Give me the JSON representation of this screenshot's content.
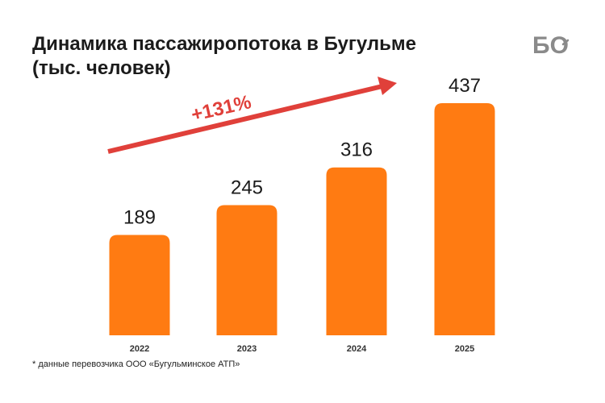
{
  "header": {
    "title_line1": "Динамика пассажиропотока в Бугульме",
    "title_line2": "(тыс. человек)",
    "logo_text": "БО"
  },
  "annotation": {
    "growth_label": "+131%",
    "arrow_color": "#e0403a"
  },
  "footnote": "* данные перевозчика ООО «Бугульминское АТП»",
  "colors": {
    "bar": "#ff7b12",
    "text": "#1b1b1b",
    "logo": "#8a8a8a"
  },
  "chart_data": {
    "type": "bar",
    "title": "Динамика пассажиропотока в Бугульме (тыс. человек)",
    "categories": [
      "2022",
      "2023",
      "2024",
      "2025"
    ],
    "values": [
      189,
      245,
      316,
      437
    ],
    "data_labels": [
      "189",
      "245",
      "316",
      "437"
    ],
    "ylim": [
      0,
      437
    ],
    "grid": false,
    "xlabel": "",
    "ylabel": ""
  }
}
